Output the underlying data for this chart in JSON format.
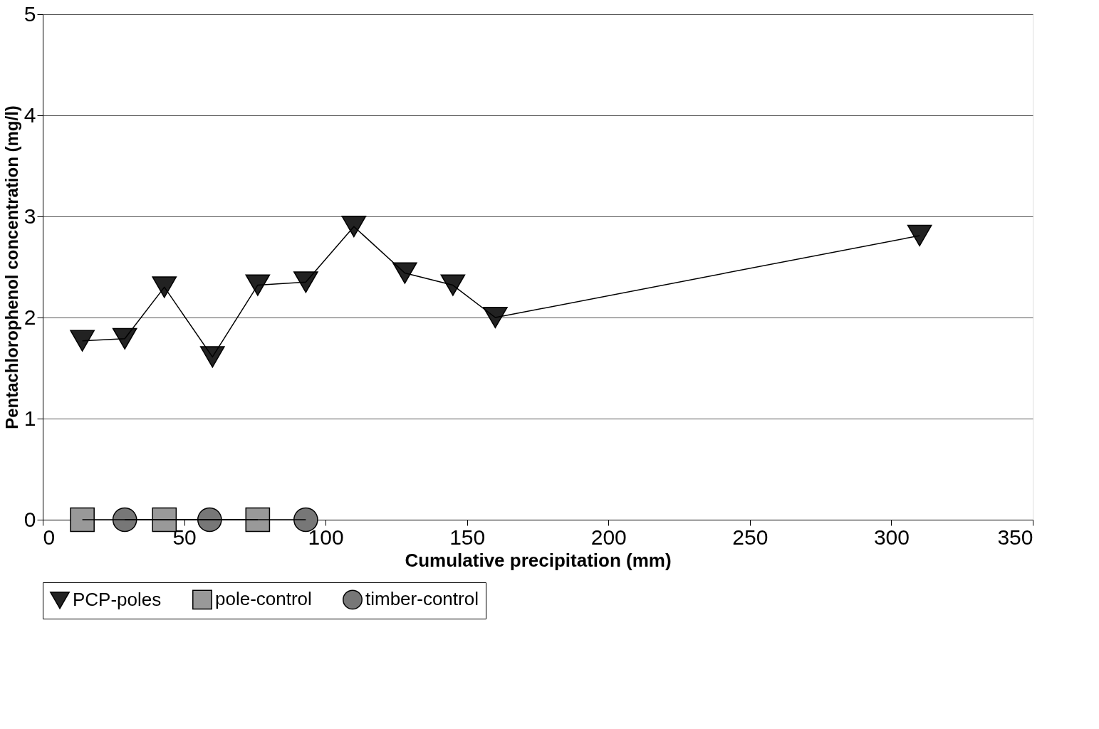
{
  "chart_data": {
    "type": "line",
    "xlabel": "Cumulative precipitation (mm)",
    "ylabel": "Pentachlorophenol concentration (mg/l)",
    "xlim": [
      0,
      350
    ],
    "xticks": [
      0,
      50,
      100,
      150,
      200,
      250,
      300,
      350
    ],
    "ylim": [
      0,
      5
    ],
    "yticks": [
      0,
      1,
      2,
      3,
      4,
      5
    ],
    "grid": "y",
    "legend": "bottom",
    "series": [
      {
        "name": "PCP-poles",
        "color": "#222222",
        "marker": "triangle",
        "x": [
          14,
          29,
          43,
          60,
          76,
          93,
          110,
          128,
          145,
          160,
          310
        ],
        "values": [
          1.77,
          1.79,
          2.3,
          1.61,
          2.32,
          2.35,
          2.9,
          2.44,
          2.32,
          2.0,
          2.81
        ]
      },
      {
        "name": "pole-control",
        "color": "#999999",
        "marker": "square",
        "x": [
          14,
          43,
          76
        ],
        "values": [
          0,
          0,
          0
        ]
      },
      {
        "name": "timber-control",
        "color": "#777777",
        "marker": "circle",
        "x": [
          29,
          59,
          93
        ],
        "values": [
          0,
          0,
          0
        ]
      }
    ]
  }
}
